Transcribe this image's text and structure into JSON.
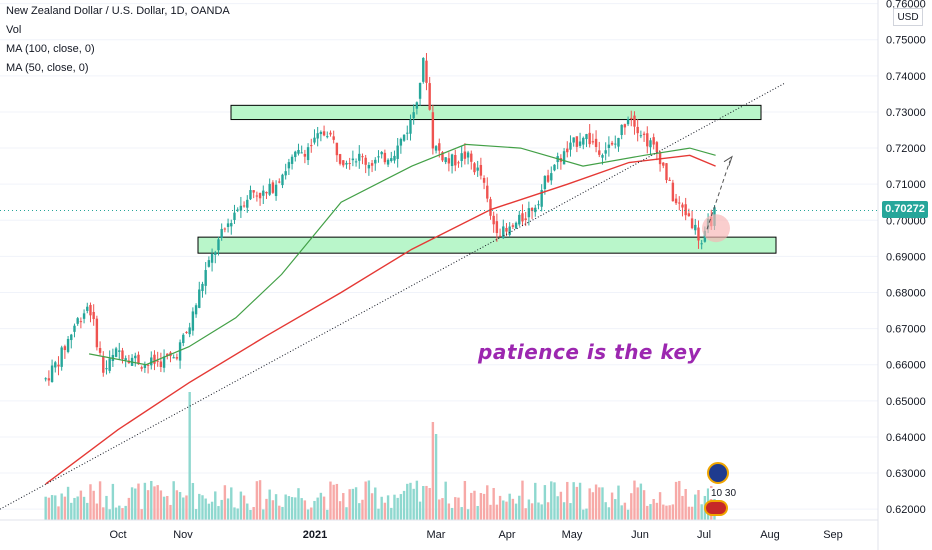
{
  "legend": {
    "symbol": "New Zealand Dollar / U.S. Dollar, 1D, OANDA",
    "vol": "Vol",
    "ma100": "MA (100, close, 0)",
    "ma50": "MA (50, close, 0)"
  },
  "currency": "USD",
  "last_price": "0.70272",
  "annotation": "patience is the key",
  "event_badge": "10 30",
  "colors": {
    "up": "#26a69a",
    "down": "#ef5350",
    "ma100": "#e53935",
    "ma50": "#43a047",
    "zone": "#b9f6ca",
    "annotation": "#9c27b0"
  },
  "chart_data": {
    "type": "candlestick",
    "y_axis_ticks": [
      "0.76000",
      "0.75000",
      "0.74000",
      "0.73000",
      "0.72000",
      "0.71000",
      "0.70000",
      "0.69000",
      "0.68000",
      "0.67000",
      "0.66000",
      "0.65000",
      "0.64000",
      "0.63000",
      "0.62000"
    ],
    "x_axis_ticks": [
      "Oct",
      "Nov",
      "2021",
      "Mar",
      "Apr",
      "May",
      "Jun",
      "Jul",
      "Aug",
      "Sep"
    ],
    "ylim": [
      0.617,
      0.761
    ],
    "price_path": [
      {
        "x": "Aug 27",
        "y": 0.656
      },
      {
        "x": "Sep 03",
        "y": 0.662
      },
      {
        "x": "Sep 10",
        "y": 0.671
      },
      {
        "x": "Sep 17",
        "y": 0.677
      },
      {
        "x": "Sep 24",
        "y": 0.658
      },
      {
        "x": "Oct 01",
        "y": 0.664
      },
      {
        "x": "Oct 15",
        "y": 0.66
      },
      {
        "x": "Oct 29",
        "y": 0.662
      },
      {
        "x": "Nov 05",
        "y": 0.67
      },
      {
        "x": "Nov 12",
        "y": 0.685
      },
      {
        "x": "Nov 19",
        "y": 0.695
      },
      {
        "x": "Nov 26",
        "y": 0.703
      },
      {
        "x": "Dec 03",
        "y": 0.708
      },
      {
        "x": "Dec 10",
        "y": 0.707
      },
      {
        "x": "Dec 17",
        "y": 0.713
      },
      {
        "x": "Dec 24",
        "y": 0.718
      },
      {
        "x": "Dec 31",
        "y": 0.721
      },
      {
        "x": "Jan 08",
        "y": 0.725
      },
      {
        "x": "Jan 15",
        "y": 0.717
      },
      {
        "x": "Jan 22",
        "y": 0.718
      },
      {
        "x": "Jan 29",
        "y": 0.716
      },
      {
        "x": "Feb 05",
        "y": 0.717
      },
      {
        "x": "Feb 12",
        "y": 0.72
      },
      {
        "x": "Feb 19",
        "y": 0.728
      },
      {
        "x": "Feb 25",
        "y": 0.745
      },
      {
        "x": "Mar 01",
        "y": 0.721
      },
      {
        "x": "Mar 08",
        "y": 0.716
      },
      {
        "x": "Mar 15",
        "y": 0.718
      },
      {
        "x": "Mar 22",
        "y": 0.712
      },
      {
        "x": "Mar 26",
        "y": 0.7
      },
      {
        "x": "Apr 01",
        "y": 0.696
      },
      {
        "x": "Apr 08",
        "y": 0.7
      },
      {
        "x": "Apr 15",
        "y": 0.705
      },
      {
        "x": "Apr 22",
        "y": 0.715
      },
      {
        "x": "Apr 29",
        "y": 0.719
      },
      {
        "x": "May 06",
        "y": 0.724
      },
      {
        "x": "May 13",
        "y": 0.72
      },
      {
        "x": "May 20",
        "y": 0.72
      },
      {
        "x": "May 27",
        "y": 0.73
      },
      {
        "x": "Jun 03",
        "y": 0.723
      },
      {
        "x": "Jun 10",
        "y": 0.718
      },
      {
        "x": "Jun 17",
        "y": 0.705
      },
      {
        "x": "Jun 24",
        "y": 0.701
      },
      {
        "x": "Jun 30",
        "y": 0.693
      },
      {
        "x": "Jul 02",
        "y": 0.698
      },
      {
        "x": "Jul 06",
        "y": 0.7027
      }
    ],
    "ma100_path": [
      {
        "x": "Aug 27",
        "y": 0.627
      },
      {
        "x": "Oct 01",
        "y": 0.642
      },
      {
        "x": "Nov 05",
        "y": 0.655
      },
      {
        "x": "Dec 10",
        "y": 0.668
      },
      {
        "x": "Jan 15",
        "y": 0.68
      },
      {
        "x": "Feb 19",
        "y": 0.692
      },
      {
        "x": "Mar 26",
        "y": 0.703
      },
      {
        "x": "Apr 29",
        "y": 0.71
      },
      {
        "x": "May 27",
        "y": 0.716
      },
      {
        "x": "Jun 24",
        "y": 0.718
      },
      {
        "x": "Jul 06",
        "y": 0.715
      }
    ],
    "ma50_path": [
      {
        "x": "Sep 17",
        "y": 0.663
      },
      {
        "x": "Oct 15",
        "y": 0.66
      },
      {
        "x": "Nov 05",
        "y": 0.665
      },
      {
        "x": "Nov 26",
        "y": 0.673
      },
      {
        "x": "Dec 17",
        "y": 0.685
      },
      {
        "x": "Jan 15",
        "y": 0.705
      },
      {
        "x": "Feb 19",
        "y": 0.715
      },
      {
        "x": "Mar 15",
        "y": 0.721
      },
      {
        "x": "Apr 08",
        "y": 0.72
      },
      {
        "x": "May 06",
        "y": 0.715
      },
      {
        "x": "Jun 03",
        "y": 0.718
      },
      {
        "x": "Jun 24",
        "y": 0.72
      },
      {
        "x": "Jul 06",
        "y": 0.718
      }
    ],
    "zones": [
      {
        "name": "resistance",
        "top": 0.731,
        "bottom": 0.729
      },
      {
        "name": "support",
        "top": 0.6945,
        "bottom": 0.692
      }
    ],
    "trendline": {
      "start": {
        "x": "Aug 20",
        "y": 0.62
      },
      "end": {
        "x": "Aug 01",
        "y": 0.738
      }
    },
    "projection": {
      "from": {
        "x": "Jul 06",
        "y": 0.6985
      },
      "to": {
        "x": "Jul 14",
        "y": 0.717
      }
    },
    "volume_scale": [
      0,
      1
    ]
  }
}
